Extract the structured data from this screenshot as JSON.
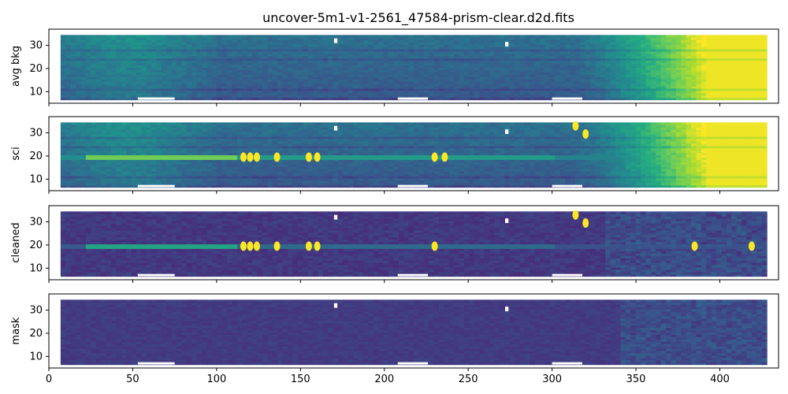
{
  "figure_title": "uncover-5m1-v1-2561_47584-prism-clear.d2d.fits",
  "chart_data": [
    {
      "type": "heatmap",
      "ylabel": "avg bkg",
      "xlim": [
        0,
        435
      ],
      "ylim": [
        5,
        37
      ],
      "xticks": [
        0,
        50,
        100,
        150,
        200,
        250,
        300,
        350,
        400
      ],
      "yticks": [
        10,
        20,
        30
      ],
      "colormap": "viridis",
      "features": {
        "trace": false,
        "background_ramp": "strong",
        "sources": []
      }
    },
    {
      "type": "heatmap",
      "ylabel": "sci",
      "xlim": [
        0,
        435
      ],
      "ylim": [
        5,
        37
      ],
      "xticks": [
        0,
        50,
        100,
        150,
        200,
        250,
        300,
        350,
        400
      ],
      "yticks": [
        10,
        20,
        30
      ],
      "colormap": "viridis",
      "features": {
        "trace": true,
        "trace_row": 19.5,
        "background_ramp": "strong",
        "sources": [
          [
            116,
            19.5
          ],
          [
            120,
            19.5
          ],
          [
            124,
            19.5
          ],
          [
            136,
            19.5
          ],
          [
            155,
            19.5
          ],
          [
            160,
            19.5
          ],
          [
            230,
            19.5
          ],
          [
            236,
            19.5
          ],
          [
            314,
            33
          ],
          [
            320,
            29.5
          ]
        ]
      }
    },
    {
      "type": "heatmap",
      "ylabel": "cleaned",
      "xlim": [
        0,
        435
      ],
      "ylim": [
        5,
        37
      ],
      "xticks": [
        0,
        50,
        100,
        150,
        200,
        250,
        300,
        350,
        400
      ],
      "yticks": [
        10,
        20,
        30
      ],
      "colormap": "viridis",
      "features": {
        "trace": true,
        "trace_row": 19.5,
        "background_ramp": "none",
        "sources": [
          [
            116,
            19.5
          ],
          [
            120,
            19.5
          ],
          [
            124,
            19.5
          ],
          [
            136,
            19.5
          ],
          [
            155,
            19.5
          ],
          [
            160,
            19.5
          ],
          [
            230,
            19.5
          ],
          [
            314,
            33
          ],
          [
            320,
            29.5
          ],
          [
            385,
            19.5
          ],
          [
            419,
            19.5
          ]
        ]
      }
    },
    {
      "type": "heatmap",
      "ylabel": "mask",
      "xlim": [
        0,
        435
      ],
      "ylim": [
        5,
        37
      ],
      "xticks": [
        0,
        50,
        100,
        150,
        200,
        250,
        300,
        350,
        400
      ],
      "yticks": [
        10,
        20,
        30
      ],
      "colormap": "viridis",
      "features": {
        "trace": false,
        "background_ramp": "weak",
        "sources": []
      }
    }
  ]
}
